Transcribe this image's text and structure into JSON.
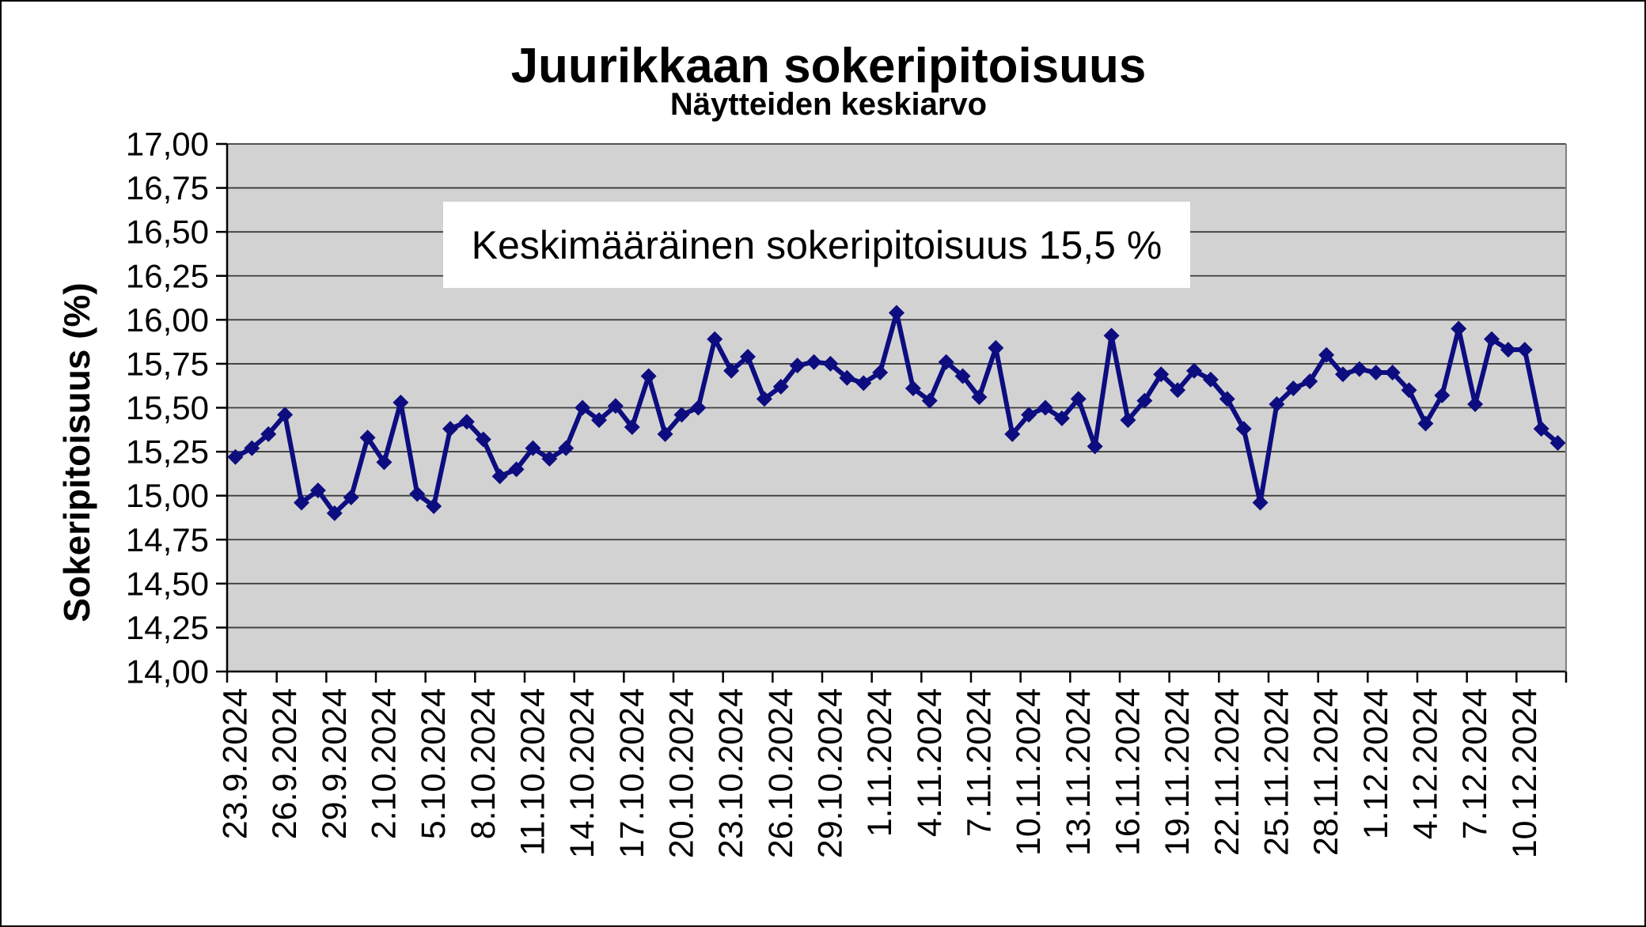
{
  "page": {
    "background": "#FFFFFF",
    "border_color": "#000000"
  },
  "chart_data": {
    "type": "line",
    "title": "Juurikkaan sokeripitoisuus",
    "subtitle": "Näytteiden keskiarvo",
    "ylabel": "Sokeripitoisuus (%)",
    "xlabel": "",
    "annotation": "Keskimääräinen sokeripitoisuus 15,5 %",
    "legend": "none",
    "grid": "horizontal",
    "plot_bg": "#D2D2D2",
    "grid_color": "#3C3C3C",
    "axis_color": "#000000",
    "ylim": [
      14.0,
      17.0
    ],
    "ytick_step": 0.25,
    "ytick_labels": [
      "17,00",
      "16,75",
      "16,50",
      "16,25",
      "16,00",
      "15,75",
      "15,50",
      "15,25",
      "15,00",
      "14,75",
      "14,50",
      "14,25",
      "14,00"
    ],
    "xtick_labels": [
      "23.9.2024",
      "26.9.2024",
      "29.9.2024",
      "2.10.2024",
      "5.10.2024",
      "8.10.2024",
      "11.10.2024",
      "14.10.2024",
      "17.10.2024",
      "20.10.2024",
      "23.10.2024",
      "26.10.2024",
      "29.10.2024",
      "1.11.2024",
      "4.11.2024",
      "7.11.2024",
      "10.11.2024",
      "13.11.2024",
      "16.11.2024",
      "19.11.2024",
      "22.11.2024",
      "25.11.2024",
      "28.11.2024",
      "1.12.2024",
      "4.12.2024",
      "7.12.2024",
      "10.12.2024"
    ],
    "x_label_every": 3,
    "series": [
      {
        "name": "Näytteiden keskiarvo",
        "color": "#0D0D80",
        "marker": "diamond",
        "x": [
          "23.9.2024",
          "24.9.2024",
          "25.9.2024",
          "26.9.2024",
          "27.9.2024",
          "28.9.2024",
          "29.9.2024",
          "30.9.2024",
          "1.10.2024",
          "2.10.2024",
          "3.10.2024",
          "4.10.2024",
          "5.10.2024",
          "6.10.2024",
          "7.10.2024",
          "8.10.2024",
          "9.10.2024",
          "10.10.2024",
          "11.10.2024",
          "12.10.2024",
          "13.10.2024",
          "14.10.2024",
          "15.10.2024",
          "16.10.2024",
          "17.10.2024",
          "18.10.2024",
          "19.10.2024",
          "20.10.2024",
          "21.10.2024",
          "22.10.2024",
          "23.10.2024",
          "24.10.2024",
          "25.10.2024",
          "26.10.2024",
          "27.10.2024",
          "28.10.2024",
          "29.10.2024",
          "30.10.2024",
          "31.10.2024",
          "1.11.2024",
          "2.11.2024",
          "3.11.2024",
          "4.11.2024",
          "5.11.2024",
          "6.11.2024",
          "7.11.2024",
          "8.11.2024",
          "9.11.2024",
          "10.11.2024",
          "11.11.2024",
          "12.11.2024",
          "13.11.2024",
          "14.11.2024",
          "15.11.2024",
          "16.11.2024",
          "17.11.2024",
          "18.11.2024",
          "19.11.2024",
          "20.11.2024",
          "21.11.2024",
          "22.11.2024",
          "23.11.2024",
          "24.11.2024",
          "25.11.2024",
          "26.11.2024",
          "27.11.2024",
          "28.11.2024",
          "29.11.2024",
          "30.11.2024",
          "1.12.2024",
          "2.12.2024",
          "3.12.2024",
          "4.12.2024",
          "5.12.2024",
          "6.12.2024",
          "7.12.2024",
          "8.12.2024",
          "9.12.2024",
          "10.12.2024",
          "11.12.2024",
          "12.12.2024"
        ],
        "values": [
          15.22,
          15.27,
          15.35,
          15.46,
          14.96,
          15.03,
          14.9,
          14.99,
          15.33,
          15.19,
          15.53,
          15.01,
          14.94,
          15.38,
          15.42,
          15.32,
          15.11,
          15.15,
          15.27,
          15.21,
          15.27,
          15.5,
          15.43,
          15.51,
          15.39,
          15.68,
          15.35,
          15.46,
          15.5,
          15.89,
          15.71,
          15.79,
          15.55,
          15.62,
          15.74,
          15.76,
          15.75,
          15.67,
          15.64,
          15.7,
          16.04,
          15.61,
          15.54,
          15.76,
          15.68,
          15.56,
          15.84,
          15.35,
          15.46,
          15.5,
          15.44,
          15.55,
          15.28,
          15.91,
          15.43,
          15.54,
          15.69,
          15.6,
          15.71,
          15.66,
          15.55,
          15.38,
          14.96,
          15.52,
          15.61,
          15.65,
          15.8,
          15.69,
          15.72,
          15.7,
          15.7,
          15.6,
          15.41,
          15.57,
          15.95,
          15.52,
          15.89,
          15.83,
          15.83,
          15.38,
          15.3
        ]
      }
    ]
  }
}
